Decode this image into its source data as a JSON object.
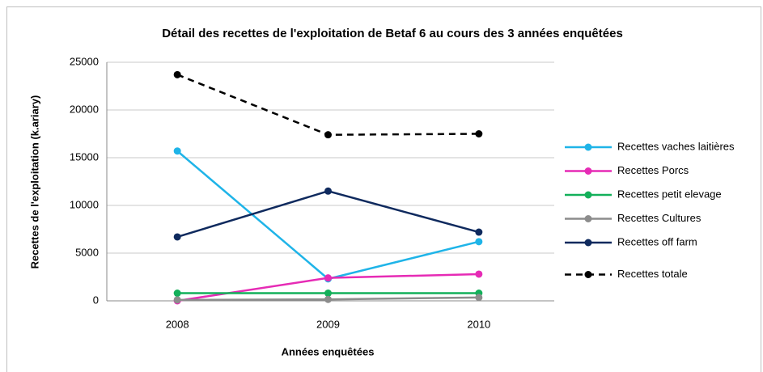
{
  "chart_data": {
    "type": "line",
    "title": "Détail des recettes de l'exploitation de Betaf 6 au cours des 3 années enquêtées",
    "x_label": "Années enquêtées",
    "y_label": "Recettes de l'exploitation  (k.ariary)",
    "categories": [
      "2008",
      "2009",
      "2010"
    ],
    "series": [
      {
        "name": "Recettes vaches laitières",
        "color": "#1fb4e8",
        "values": [
          15700,
          2300,
          6200
        ]
      },
      {
        "name": "Recettes Porcs",
        "color": "#e62bb5",
        "values": [
          0,
          2400,
          2800
        ]
      },
      {
        "name": "Recettes petit elevage",
        "color": "#13b05a",
        "values": [
          800,
          800,
          800
        ]
      },
      {
        "name": "Recettes Cultures",
        "color": "#8c8c8c",
        "values": [
          100,
          150,
          350
        ]
      },
      {
        "name": "Recettes off farm",
        "color": "#0f2a5e",
        "values": [
          6700,
          11500,
          7200
        ]
      },
      {
        "name": "Recettes totale",
        "color": "#000000",
        "dashed": true,
        "values": [
          23700,
          17400,
          17500
        ]
      }
    ],
    "ylim": [
      0,
      25000
    ],
    "yticks": [
      0,
      5000,
      10000,
      15000,
      20000,
      25000
    ],
    "grid": true
  }
}
